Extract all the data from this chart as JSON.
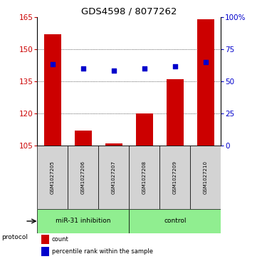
{
  "title": "GDS4598 / 8077262",
  "samples": [
    "GSM1027205",
    "GSM1027206",
    "GSM1027207",
    "GSM1027208",
    "GSM1027209",
    "GSM1027210"
  ],
  "bar_values": [
    157,
    112,
    106,
    120,
    136,
    164
  ],
  "bar_baseline": 105,
  "blue_dot_values": [
    143,
    141,
    140,
    141,
    142,
    144
  ],
  "ylim_left": [
    105,
    165
  ],
  "ylim_right": [
    0,
    100
  ],
  "yticks_left": [
    105,
    120,
    135,
    150,
    165
  ],
  "yticks_right": [
    0,
    25,
    50,
    75,
    100
  ],
  "ytick_labels_right": [
    "0",
    "25",
    "50",
    "75",
    "100%"
  ],
  "bar_color": "#cc0000",
  "dot_color": "#0000cc",
  "group1_label": "miR-31 inhibition",
  "group2_label": "control",
  "group1_indices": [
    0,
    1,
    2
  ],
  "group2_indices": [
    3,
    4,
    5
  ],
  "group_bg_color": "#90EE90",
  "sample_bg_color": "#d3d3d3",
  "protocol_label": "protocol",
  "legend_count": "count",
  "legend_percentile": "percentile rank within the sample",
  "title_fontsize": 9.5,
  "tick_fontsize": 7.5,
  "sample_fontsize": 5.0,
  "protocol_fontsize": 6.5,
  "legend_fontsize": 6.0
}
